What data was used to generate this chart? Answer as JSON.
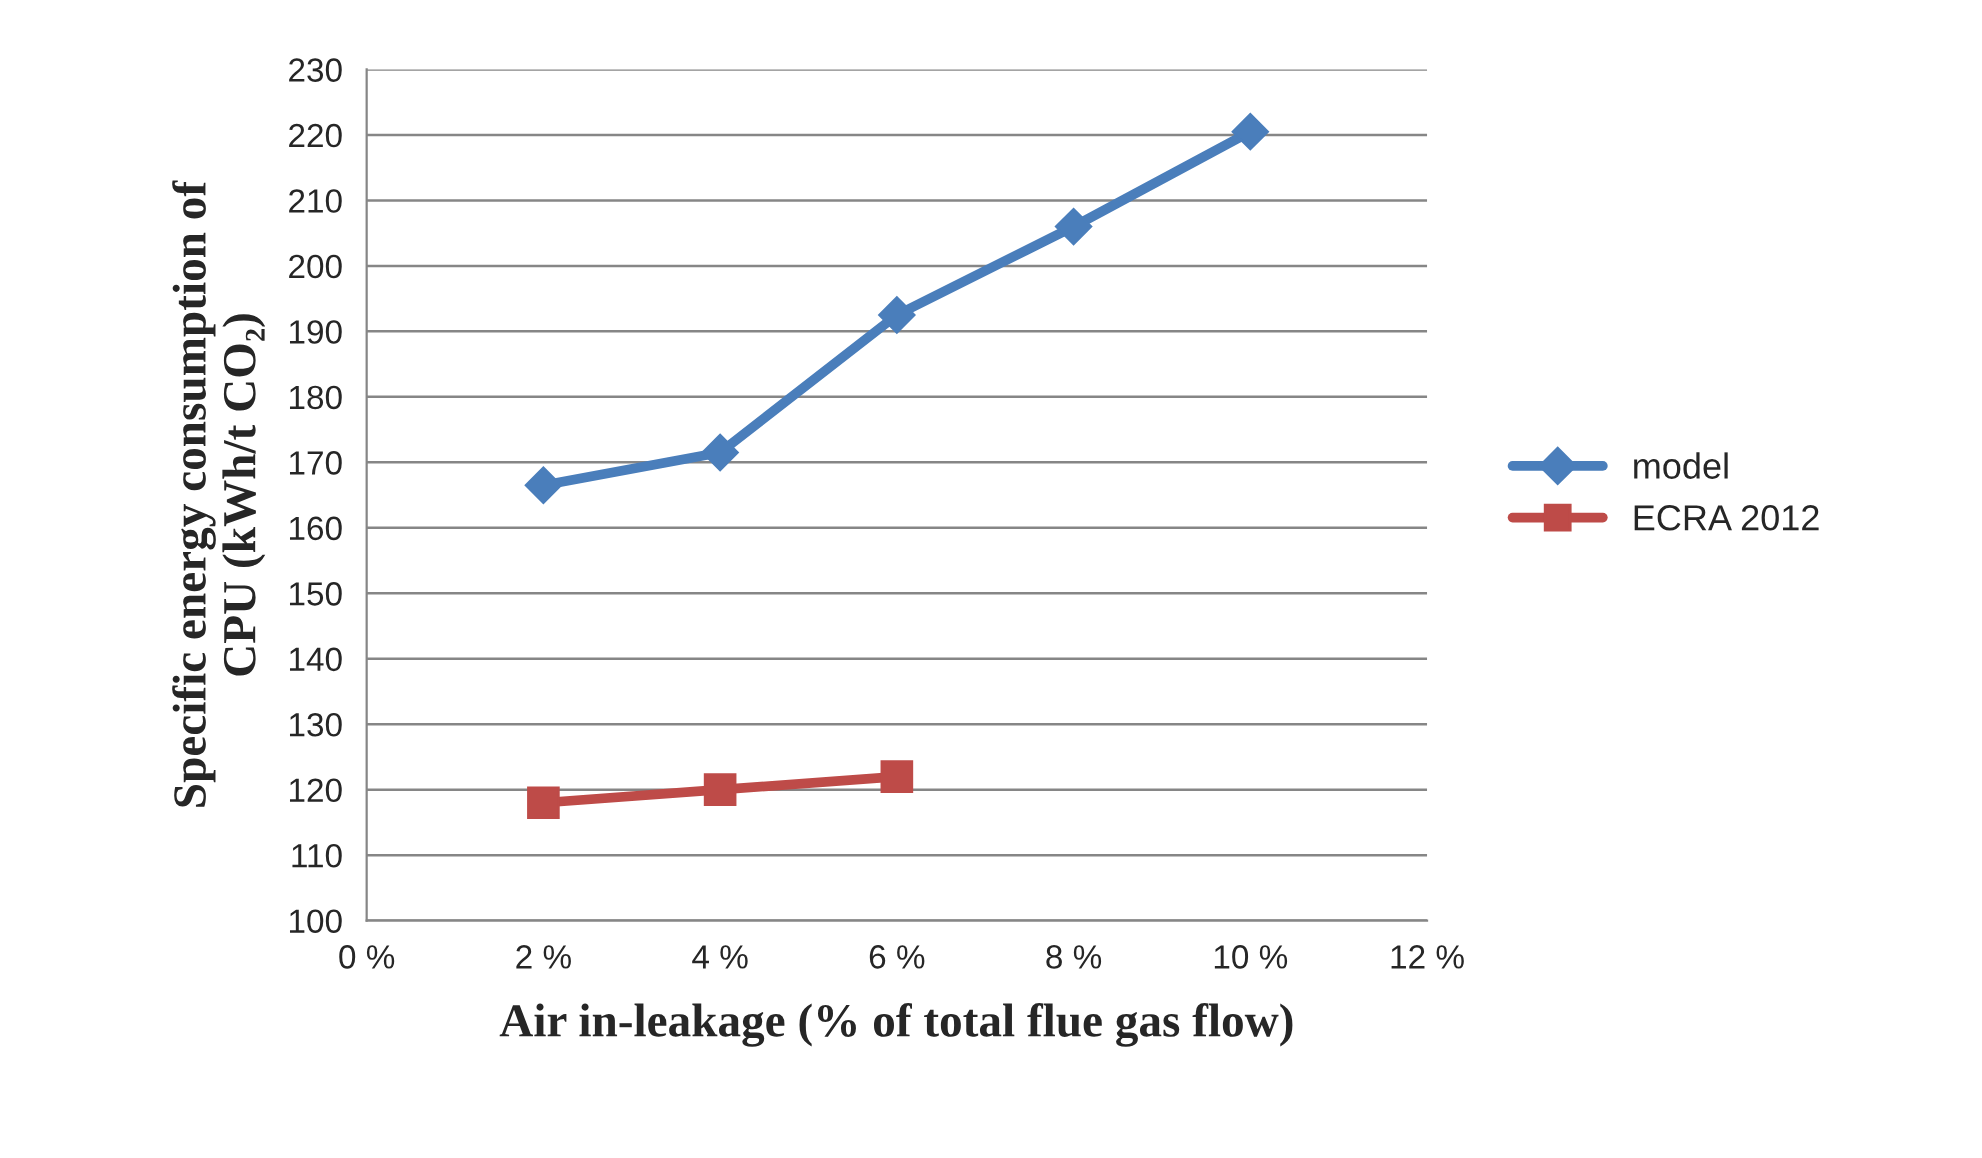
{
  "chart_data": {
    "type": "line",
    "xlabel": "Air in-leakage (% of total flue gas flow)",
    "ylabel": "Specific energy consumption of\nCPU (kWh/t CO₂)",
    "x": [
      2,
      4,
      6,
      8,
      10
    ],
    "series": [
      {
        "name": "model",
        "color": "#4a7ebb",
        "marker": "diamond",
        "values": [
          166.5,
          171.5,
          192.5,
          206,
          220.5
        ]
      },
      {
        "name": "ECRA 2012",
        "color": "#be4b48",
        "marker": "square",
        "values": [
          118,
          120,
          122,
          null,
          null
        ]
      }
    ],
    "xlim": [
      0,
      12
    ],
    "xticks": [
      {
        "value": 0,
        "label": "0 %"
      },
      {
        "value": 2,
        "label": "2 %"
      },
      {
        "value": 4,
        "label": "4 %"
      },
      {
        "value": 6,
        "label": "6 %"
      },
      {
        "value": 8,
        "label": "8 %"
      },
      {
        "value": 10,
        "label": "10 %"
      },
      {
        "value": 12,
        "label": "12 %"
      }
    ],
    "ylim": [
      100,
      230
    ],
    "yticks": [
      100,
      110,
      120,
      130,
      140,
      150,
      160,
      170,
      180,
      190,
      200,
      210,
      220,
      230
    ],
    "grid": "y",
    "legend": "right",
    "line_style": "solid"
  }
}
